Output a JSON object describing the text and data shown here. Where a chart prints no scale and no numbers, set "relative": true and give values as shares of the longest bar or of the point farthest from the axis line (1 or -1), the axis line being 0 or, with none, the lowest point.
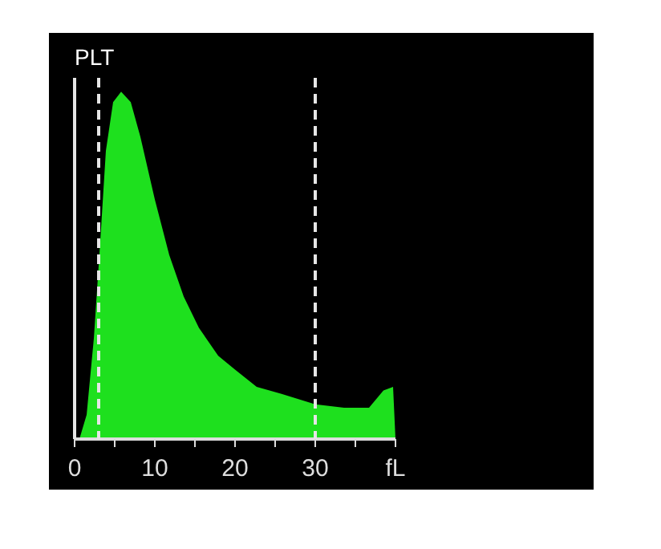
{
  "chart_data": {
    "type": "area",
    "title": "PLT",
    "relative": true,
    "color": "#1ee01e",
    "x": [
      0.6,
      1.5,
      2.4,
      3.2,
      3.9,
      4.8,
      5.8,
      7,
      8.2,
      10,
      11.8,
      13.6,
      15.5,
      17.9,
      20,
      22.7,
      25.8,
      30,
      33.6,
      36.7,
      38.5,
      39.7,
      40
    ],
    "values": [
      0,
      0.07,
      0.29,
      0.57,
      0.83,
      0.97,
      1.0,
      0.97,
      0.87,
      0.69,
      0.53,
      0.41,
      0.32,
      0.24,
      0.2,
      0.15,
      0.13,
      0.1,
      0.09,
      0.09,
      0.14,
      0.15,
      0
    ],
    "xlim": [
      0,
      40
    ],
    "xticks": [
      0,
      {
        "value": 5,
        "label": null
      },
      10,
      {
        "value": 15,
        "label": null
      },
      20,
      {
        "value": 25,
        "label": null
      },
      30,
      {
        "value": 35,
        "label": null
      },
      {
        "value": 40,
        "label": "fL"
      }
    ],
    "ref_lines": [
      {
        "axis": "x",
        "value": 0,
        "label": null,
        "color": "#e6e6e6",
        "line_style": "solid"
      },
      {
        "axis": "x",
        "value": 3,
        "label": null,
        "color": "#e6e6e6",
        "line_style": "dashed"
      },
      {
        "axis": "x",
        "value": 30,
        "label": null,
        "color": "#e6e6e6",
        "line_style": "dashed"
      }
    ],
    "grid": false
  }
}
